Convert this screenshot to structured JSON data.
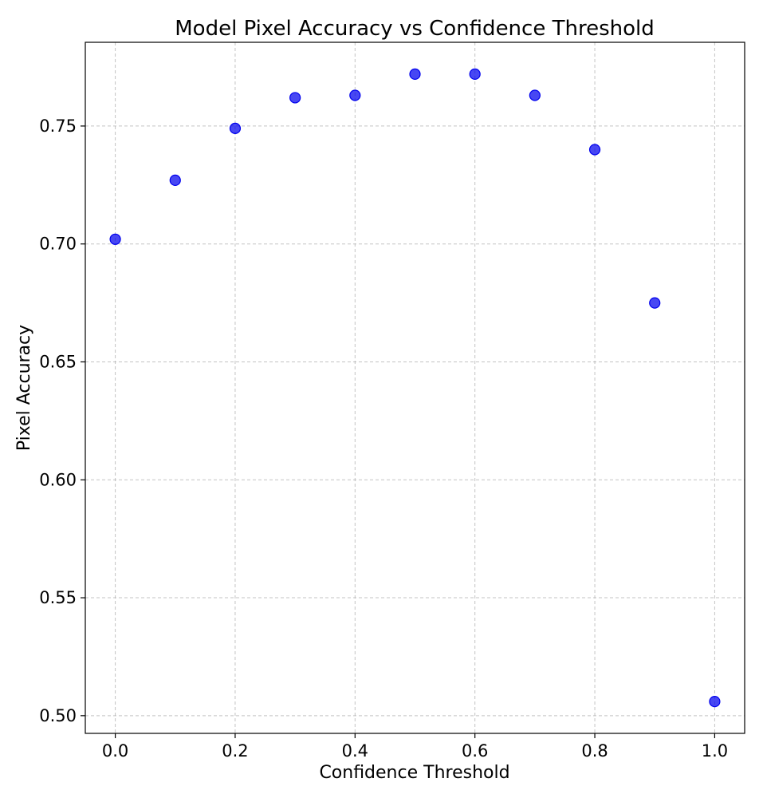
{
  "chart_data": {
    "type": "scatter",
    "title": "Model Pixel Accuracy vs Confidence Threshold",
    "xlabel": "Confidence Threshold",
    "ylabel": "Pixel Accuracy",
    "x": [
      0.0,
      0.1,
      0.2,
      0.3,
      0.4,
      0.5,
      0.6,
      0.7,
      0.8,
      0.9,
      1.0
    ],
    "y": [
      0.702,
      0.727,
      0.749,
      0.762,
      0.763,
      0.772,
      0.772,
      0.763,
      0.74,
      0.675,
      0.506
    ],
    "xlim": [
      -0.05,
      1.05
    ],
    "ylim": [
      0.4925,
      0.7855
    ],
    "xticks": [
      "0.0",
      "0.2",
      "0.4",
      "0.6",
      "0.8",
      "1.0"
    ],
    "yticks": [
      "0.50",
      "0.55",
      "0.60",
      "0.65",
      "0.70",
      "0.75"
    ],
    "grid": true,
    "marker_color": "#0000ee"
  }
}
